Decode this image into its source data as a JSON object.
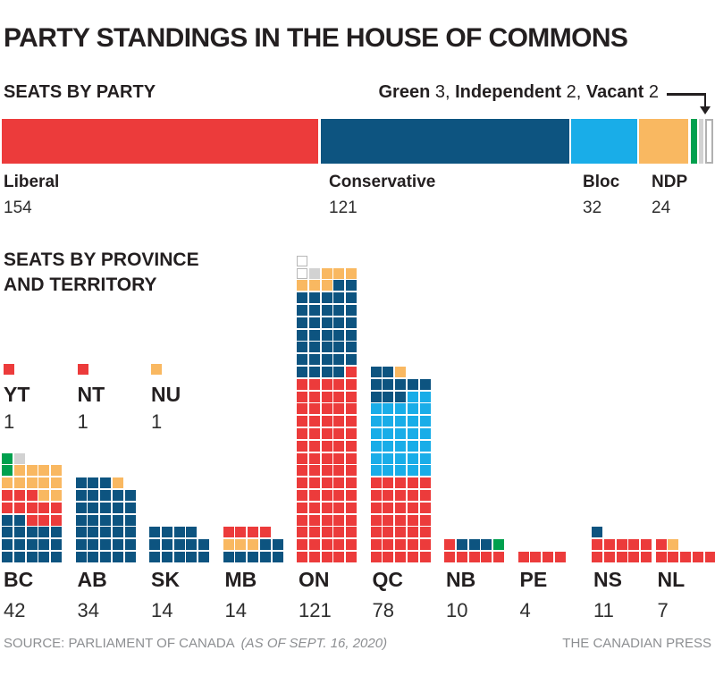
{
  "title": "PARTY STANDINGS IN THE HOUSE OF COMMONS",
  "seats_by_party": {
    "heading": "SEATS BY PARTY",
    "annotation": {
      "green_label": "Green",
      "green_value": "3,",
      "independent_label": "Independent",
      "independent_value": "2,",
      "vacant_label": "Vacant",
      "vacant_value": "2"
    },
    "total_seats": 338,
    "segments": [
      {
        "party": "Liberal",
        "seats": 154,
        "color": "#ec3b3b"
      },
      {
        "party": "Conservative",
        "seats": 121,
        "color": "#0d5480"
      },
      {
        "party": "Bloc",
        "seats": 32,
        "color": "#19ade8"
      },
      {
        "party": "NDP",
        "seats": 24,
        "color": "#f9b861"
      },
      {
        "party": "Green",
        "seats": 3,
        "color": "#00a04e"
      },
      {
        "party": "Independent",
        "seats": 2,
        "color": "#d2d2d2"
      },
      {
        "party": "Vacant",
        "seats": 2,
        "color": "#ffffff",
        "border": "#b0b0b0"
      }
    ]
  },
  "seats_by_province": {
    "heading_line1": "SEATS BY PROVINCE",
    "heading_line2": "AND TERRITORY",
    "code_parties": {
      "L": "Liberal",
      "C": "Conservative",
      "B": "Bloc",
      "N": "NDP",
      "G": "Green",
      "I": "Independent",
      "V": "Vacant"
    },
    "code_colors": {
      "L": "#ec3b3b",
      "C": "#0d5480",
      "B": "#19ade8",
      "N": "#f9b861",
      "G": "#00a04e",
      "I": "#d2d2d2",
      "V": "#ffffff"
    },
    "territories": [
      {
        "code": "YT",
        "seats": 1,
        "rows": [
          [
            "L"
          ]
        ]
      },
      {
        "code": "NT",
        "seats": 1,
        "rows": [
          [
            "L"
          ]
        ]
      },
      {
        "code": "NU",
        "seats": 1,
        "rows": [
          [
            "N"
          ]
        ]
      }
    ],
    "provinces": [
      {
        "code": "BC",
        "seats": 42,
        "rows": [
          [
            "G",
            "I"
          ],
          [
            "G",
            "N",
            "N",
            "N",
            "N"
          ],
          [
            "N",
            "N",
            "N",
            "N",
            "N"
          ],
          [
            "L",
            "L",
            "L",
            "N",
            "N"
          ],
          [
            "L",
            "L",
            "L",
            "L",
            "L"
          ],
          [
            "C",
            "C",
            "L",
            "L",
            "L"
          ],
          [
            "C",
            "C",
            "C",
            "C",
            "C"
          ],
          [
            "C",
            "C",
            "C",
            "C",
            "C"
          ],
          [
            "C",
            "C",
            "C",
            "C",
            "C"
          ]
        ]
      },
      {
        "code": "AB",
        "seats": 34,
        "rows": [
          [
            "C",
            "C",
            "C",
            "N"
          ],
          [
            "C",
            "C",
            "C",
            "C",
            "C"
          ],
          [
            "C",
            "C",
            "C",
            "C",
            "C"
          ],
          [
            "C",
            "C",
            "C",
            "C",
            "C"
          ],
          [
            "C",
            "C",
            "C",
            "C",
            "C"
          ],
          [
            "C",
            "C",
            "C",
            "C",
            "C"
          ],
          [
            "C",
            "C",
            "C",
            "C",
            "C"
          ]
        ]
      },
      {
        "code": "SK",
        "seats": 14,
        "rows": [
          [
            "C",
            "C",
            "C",
            "C"
          ],
          [
            "C",
            "C",
            "C",
            "C",
            "C"
          ],
          [
            "C",
            "C",
            "C",
            "C",
            "C"
          ]
        ]
      },
      {
        "code": "MB",
        "seats": 14,
        "rows": [
          [
            "L",
            "L",
            "L",
            "L"
          ],
          [
            "N",
            "N",
            "N",
            "C",
            "C"
          ],
          [
            "C",
            "C",
            "C",
            "C",
            "C"
          ]
        ]
      },
      {
        "code": "ON",
        "seats": 121,
        "rows": [
          [
            "V"
          ],
          [
            "V",
            "I",
            "N",
            "N",
            "N"
          ],
          [
            "N",
            "N",
            "N",
            "C",
            "C"
          ],
          [
            "C",
            "C",
            "C",
            "C",
            "C"
          ],
          [
            "C",
            "C",
            "C",
            "C",
            "C"
          ],
          [
            "C",
            "C",
            "C",
            "C",
            "C"
          ],
          [
            "C",
            "C",
            "C",
            "C",
            "C"
          ],
          [
            "C",
            "C",
            "C",
            "C",
            "C"
          ],
          [
            "C",
            "C",
            "C",
            "C",
            "C"
          ],
          [
            "C",
            "C",
            "C",
            "C",
            "L"
          ],
          [
            "L",
            "L",
            "L",
            "L",
            "L"
          ],
          [
            "L",
            "L",
            "L",
            "L",
            "L"
          ],
          [
            "L",
            "L",
            "L",
            "L",
            "L"
          ],
          [
            "L",
            "L",
            "L",
            "L",
            "L"
          ],
          [
            "L",
            "L",
            "L",
            "L",
            "L"
          ],
          [
            "L",
            "L",
            "L",
            "L",
            "L"
          ],
          [
            "L",
            "L",
            "L",
            "L",
            "L"
          ],
          [
            "L",
            "L",
            "L",
            "L",
            "L"
          ],
          [
            "L",
            "L",
            "L",
            "L",
            "L"
          ],
          [
            "L",
            "L",
            "L",
            "L",
            "L"
          ],
          [
            "L",
            "L",
            "L",
            "L",
            "L"
          ],
          [
            "L",
            "L",
            "L",
            "L",
            "L"
          ],
          [
            "L",
            "L",
            "L",
            "L",
            "L"
          ],
          [
            "L",
            "L",
            "L",
            "L",
            "L"
          ],
          [
            "L",
            "L",
            "L",
            "L",
            "L"
          ]
        ]
      },
      {
        "code": "QC",
        "seats": 78,
        "rows": [
          [
            "C",
            "C",
            "N"
          ],
          [
            "C",
            "C",
            "C",
            "C",
            "C"
          ],
          [
            "C",
            "C",
            "C",
            "B",
            "B"
          ],
          [
            "B",
            "B",
            "B",
            "B",
            "B"
          ],
          [
            "B",
            "B",
            "B",
            "B",
            "B"
          ],
          [
            "B",
            "B",
            "B",
            "B",
            "B"
          ],
          [
            "B",
            "B",
            "B",
            "B",
            "B"
          ],
          [
            "B",
            "B",
            "B",
            "B",
            "B"
          ],
          [
            "B",
            "B",
            "B",
            "B",
            "B"
          ],
          [
            "L",
            "L",
            "L",
            "L",
            "L"
          ],
          [
            "L",
            "L",
            "L",
            "L",
            "L"
          ],
          [
            "L",
            "L",
            "L",
            "L",
            "L"
          ],
          [
            "L",
            "L",
            "L",
            "L",
            "L"
          ],
          [
            "L",
            "L",
            "L",
            "L",
            "L"
          ],
          [
            "L",
            "L",
            "L",
            "L",
            "L"
          ],
          [
            "L",
            "L",
            "L",
            "L",
            "L"
          ]
        ]
      },
      {
        "code": "NB",
        "seats": 10,
        "rows": [
          [
            "L",
            "C",
            "C",
            "C",
            "G"
          ],
          [
            "L",
            "L",
            "L",
            "L",
            "L"
          ]
        ]
      },
      {
        "code": "PE",
        "seats": 4,
        "rows": [
          [
            "L",
            "L",
            "L",
            "L"
          ]
        ]
      },
      {
        "code": "NS",
        "seats": 11,
        "rows": [
          [
            "C"
          ],
          [
            "L",
            "L",
            "L",
            "L",
            "L"
          ],
          [
            "L",
            "L",
            "L",
            "L",
            "L"
          ]
        ]
      },
      {
        "code": "NL",
        "seats": 7,
        "rows": [
          [
            "L",
            "N"
          ],
          [
            "L",
            "L",
            "L",
            "L",
            "L"
          ]
        ]
      }
    ]
  },
  "footer": {
    "source": "SOURCE: PARLIAMENT OF CANADA",
    "as_of": "(AS OF SEPT. 16, 2020)",
    "credit": "THE CANADIAN PRESS"
  },
  "chart_data": [
    {
      "type": "bar",
      "subtype": "horizontal-stacked",
      "title": "SEATS BY PARTY",
      "categories": [
        "Liberal",
        "Conservative",
        "Bloc",
        "NDP",
        "Green",
        "Independent",
        "Vacant"
      ],
      "values": [
        154,
        121,
        32,
        24,
        3,
        2,
        2
      ],
      "total": 338,
      "colors": [
        "#ec3b3b",
        "#0d5480",
        "#19ade8",
        "#f9b861",
        "#00a04e",
        "#d2d2d2",
        "#ffffff"
      ],
      "annotation": "Green 3, Independent 2, Vacant 2"
    },
    {
      "type": "table",
      "subtype": "waffle-columns",
      "title": "SEATS BY PROVINCE AND TERRITORY",
      "categories": [
        "YT",
        "NT",
        "NU",
        "BC",
        "AB",
        "SK",
        "MB",
        "ON",
        "QC",
        "NB",
        "PE",
        "NS",
        "NL"
      ],
      "totals": [
        1,
        1,
        1,
        42,
        34,
        14,
        14,
        121,
        78,
        10,
        4,
        11,
        7
      ],
      "series": [
        {
          "name": "Liberal",
          "values": [
            1,
            1,
            0,
            11,
            0,
            0,
            4,
            76,
            35,
            6,
            4,
            10,
            6
          ]
        },
        {
          "name": "Conservative",
          "values": [
            0,
            0,
            0,
            17,
            33,
            14,
            7,
            36,
            10,
            3,
            0,
            1,
            0
          ]
        },
        {
          "name": "Bloc",
          "values": [
            0,
            0,
            0,
            0,
            0,
            0,
            0,
            0,
            32,
            0,
            0,
            0,
            0
          ]
        },
        {
          "name": "NDP",
          "values": [
            0,
            0,
            1,
            11,
            1,
            0,
            3,
            6,
            1,
            0,
            0,
            0,
            1
          ]
        },
        {
          "name": "Green",
          "values": [
            0,
            0,
            0,
            2,
            0,
            0,
            0,
            0,
            0,
            1,
            0,
            0,
            0
          ]
        },
        {
          "name": "Independent",
          "values": [
            0,
            0,
            0,
            1,
            0,
            0,
            0,
            1,
            0,
            0,
            0,
            0,
            0
          ]
        },
        {
          "name": "Vacant",
          "values": [
            0,
            0,
            0,
            0,
            0,
            0,
            0,
            2,
            0,
            0,
            0,
            0,
            0
          ]
        }
      ],
      "legend_position": "none",
      "grid": false
    }
  ]
}
